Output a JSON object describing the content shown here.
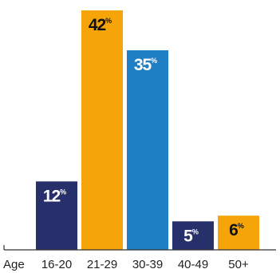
{
  "chart_data": {
    "type": "bar",
    "title": "",
    "xlabel": "Age",
    "ylabel": "",
    "categories": [
      "16-20",
      "21-29",
      "30-39",
      "40-49",
      "50+"
    ],
    "values": [
      12,
      42,
      35,
      5,
      6
    ],
    "value_suffix": "%",
    "ylim": [
      0,
      42
    ],
    "grid": false,
    "legend": "none",
    "colors": [
      "#28306b",
      "#f5a50a",
      "#1f7fc4",
      "#28306b",
      "#f5a50a"
    ],
    "label_colors": [
      "#ffffff",
      "#111111",
      "#ffffff",
      "#ffffff",
      "#111111"
    ]
  }
}
